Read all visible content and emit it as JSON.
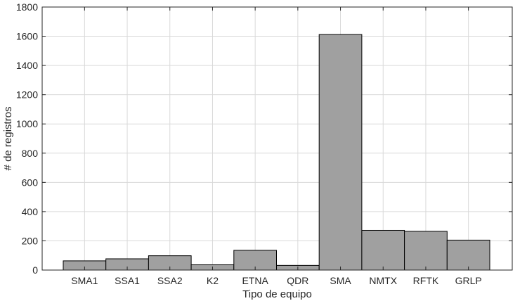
{
  "chart_data": {
    "type": "bar",
    "categories": [
      "SMA1",
      "SSA1",
      "SSA2",
      "K2",
      "ETNA",
      "QDR",
      "SMA",
      "NMTX",
      "RFTK",
      "GRLP"
    ],
    "values": [
      63,
      77,
      98,
      36,
      135,
      32,
      1612,
      272,
      265,
      205
    ],
    "xlabel": "Tipo de equipo",
    "ylabel": "# de registros",
    "ylim": [
      0,
      1800
    ],
    "yticks": [
      0,
      200,
      400,
      600,
      800,
      1000,
      1200,
      1400,
      1600,
      1800
    ],
    "grid": true,
    "bar_color": "#a0a0a0",
    "edge_color": "#000000"
  }
}
